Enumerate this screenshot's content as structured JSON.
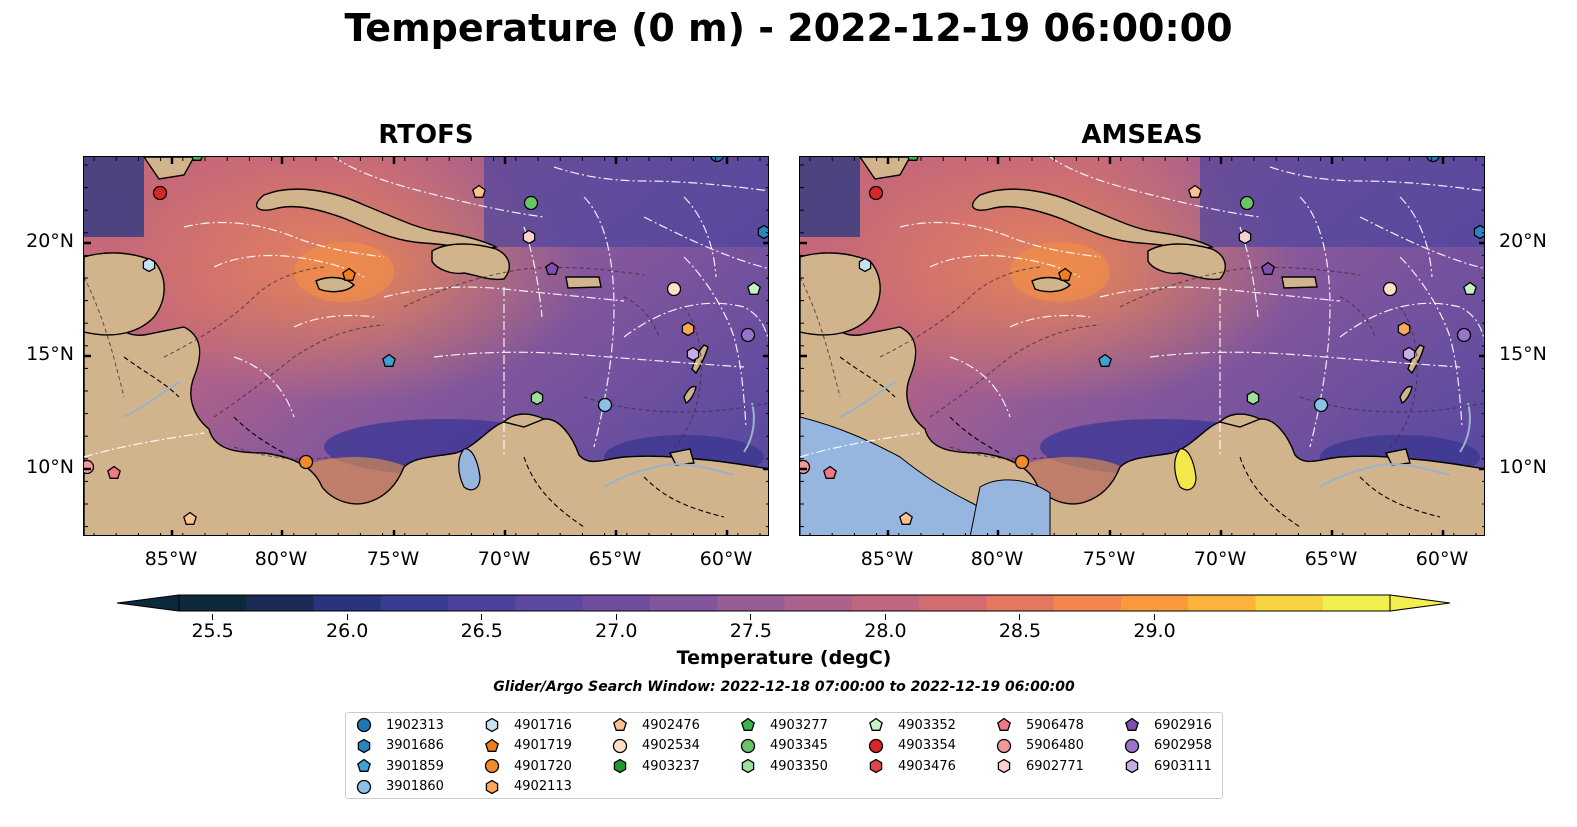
{
  "title": "Temperature (0 m) - 2022-12-19 06:00:00",
  "maps": [
    {
      "title": "RTOFS"
    },
    {
      "title": "AMSEAS"
    }
  ],
  "lat_labels": [
    "20°N",
    "15°N",
    "10°N"
  ],
  "lon_labels": [
    "85°W",
    "80°W",
    "75°W",
    "70°W",
    "65°W",
    "60°W"
  ],
  "colorbar": {
    "label": "Temperature (degC)",
    "ticks": [
      "25.5",
      "26.0",
      "26.5",
      "27.0",
      "27.5",
      "28.0",
      "28.5",
      "29.0"
    ],
    "colors": [
      "#0d2a3d",
      "#1a2b55",
      "#28357d",
      "#393c94",
      "#4b429c",
      "#5d489f",
      "#6f4d9f",
      "#83559c",
      "#985d96",
      "#ad628d",
      "#c16680",
      "#d36c70",
      "#e6765f",
      "#f4854c",
      "#fa9a3c",
      "#fbb43b",
      "#f7d442",
      "#f2ef4f"
    ]
  },
  "search_window": "Glider/Argo Search Window: 2022-12-18 07:00:00 to 2022-12-19 06:00:00",
  "legend": [
    {
      "id": "1902313",
      "shape": "circle",
      "color": "#1f77b4"
    },
    {
      "id": "3901686",
      "shape": "hexagon",
      "color": "#2a85c0"
    },
    {
      "id": "3901859",
      "shape": "pentagon",
      "color": "#3fa0d6"
    },
    {
      "id": "3901860",
      "shape": "circle",
      "color": "#8bc1e8"
    },
    {
      "id": "4901716",
      "shape": "hexagon",
      "color": "#c6e4f4"
    },
    {
      "id": "4901719",
      "shape": "pentagon",
      "color": "#f07d1e"
    },
    {
      "id": "4901720",
      "shape": "circle",
      "color": "#f58a2a"
    },
    {
      "id": "4902113",
      "shape": "hexagon",
      "color": "#fba75a"
    },
    {
      "id": "4902476",
      "shape": "pentagon",
      "color": "#fcc28f"
    },
    {
      "id": "4902534",
      "shape": "circle",
      "color": "#fde0c5"
    },
    {
      "id": "4903237",
      "shape": "hexagon",
      "color": "#229a2b"
    },
    {
      "id": "4903277",
      "shape": "pentagon",
      "color": "#3bb44a"
    },
    {
      "id": "4903345",
      "shape": "circle",
      "color": "#67c467"
    },
    {
      "id": "4903350",
      "shape": "hexagon",
      "color": "#9be19b"
    },
    {
      "id": "4903352",
      "shape": "pentagon",
      "color": "#c6f3c6"
    },
    {
      "id": "4903354",
      "shape": "circle",
      "color": "#d62728"
    },
    {
      "id": "4903476",
      "shape": "hexagon",
      "color": "#e0454a"
    },
    {
      "id": "5906478",
      "shape": "pentagon",
      "color": "#ef7a85"
    },
    {
      "id": "5906480",
      "shape": "circle",
      "color": "#f29a9b"
    },
    {
      "id": "6902771",
      "shape": "hexagon",
      "color": "#fad1d0"
    },
    {
      "id": "6902916",
      "shape": "pentagon",
      "color": "#7e4fb0"
    },
    {
      "id": "6902958",
      "shape": "circle",
      "color": "#9b73cb"
    },
    {
      "id": "6903111",
      "shape": "hexagon",
      "color": "#c6aee6"
    }
  ]
}
